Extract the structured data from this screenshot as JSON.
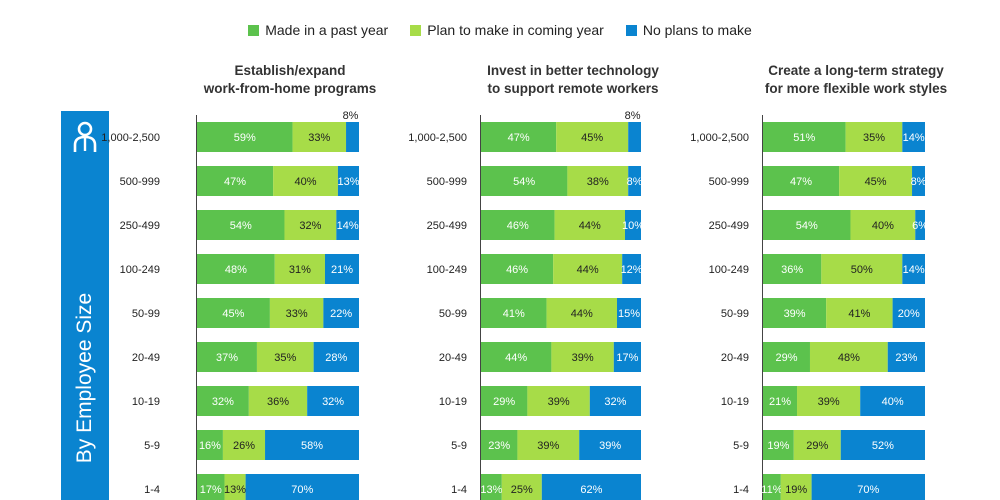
{
  "legend": {
    "made": "Made in a past year",
    "plan": "Plan to make in coming year",
    "none": "No plans to make"
  },
  "sidebar": {
    "label": "By Employee Size",
    "icon": "person-icon"
  },
  "colors": {
    "made": "#5cc24d",
    "plan": "#a7dc48",
    "none": "#0a84d0",
    "sidebar": "#0a84d0"
  },
  "chart_data": [
    {
      "type": "bar",
      "orientation": "horizontal",
      "stacked": true,
      "title_lines": [
        "Establish/expand",
        "work-from-home programs"
      ],
      "categories": [
        "1,000-2,500",
        "500-999",
        "250-499",
        "100-249",
        "50-99",
        "20-49",
        "10-19",
        "5-9",
        "1-4"
      ],
      "series": [
        {
          "name": "Made in a past year",
          "values": [
            59,
            47,
            54,
            48,
            45,
            37,
            32,
            16,
            17
          ]
        },
        {
          "name": "Plan to make in coming year",
          "values": [
            33,
            40,
            32,
            31,
            33,
            35,
            36,
            26,
            13
          ]
        },
        {
          "name": "No plans to make",
          "values": [
            8,
            13,
            14,
            21,
            22,
            28,
            32,
            58,
            70
          ]
        }
      ],
      "unit": "%"
    },
    {
      "type": "bar",
      "orientation": "horizontal",
      "stacked": true,
      "title_lines": [
        "Invest in better technology",
        "to support remote workers"
      ],
      "categories": [
        "1,000-2,500",
        "500-999",
        "250-499",
        "100-249",
        "50-99",
        "20-49",
        "10-19",
        "5-9",
        "1-4"
      ],
      "series": [
        {
          "name": "Made in a past year",
          "values": [
            47,
            54,
            46,
            46,
            41,
            44,
            29,
            23,
            13
          ]
        },
        {
          "name": "Plan to make in coming year",
          "values": [
            45,
            38,
            44,
            44,
            44,
            39,
            39,
            39,
            25
          ]
        },
        {
          "name": "No plans to make",
          "values": [
            8,
            8,
            10,
            12,
            15,
            17,
            32,
            39,
            62
          ]
        }
      ],
      "unit": "%"
    },
    {
      "type": "bar",
      "orientation": "horizontal",
      "stacked": true,
      "title_lines": [
        "Create a long-term strategy",
        "for more flexible work styles"
      ],
      "categories": [
        "1,000-2,500",
        "500-999",
        "250-499",
        "100-249",
        "50-99",
        "20-49",
        "10-19",
        "5-9",
        "1-4"
      ],
      "series": [
        {
          "name": "Made in a past year",
          "values": [
            51,
            47,
            54,
            36,
            39,
            29,
            21,
            19,
            11
          ]
        },
        {
          "name": "Plan to make in coming year",
          "values": [
            35,
            45,
            40,
            50,
            41,
            48,
            39,
            29,
            19
          ]
        },
        {
          "name": "No plans to make",
          "values": [
            14,
            8,
            6,
            14,
            20,
            23,
            40,
            52,
            70
          ]
        }
      ],
      "unit": "%"
    }
  ]
}
